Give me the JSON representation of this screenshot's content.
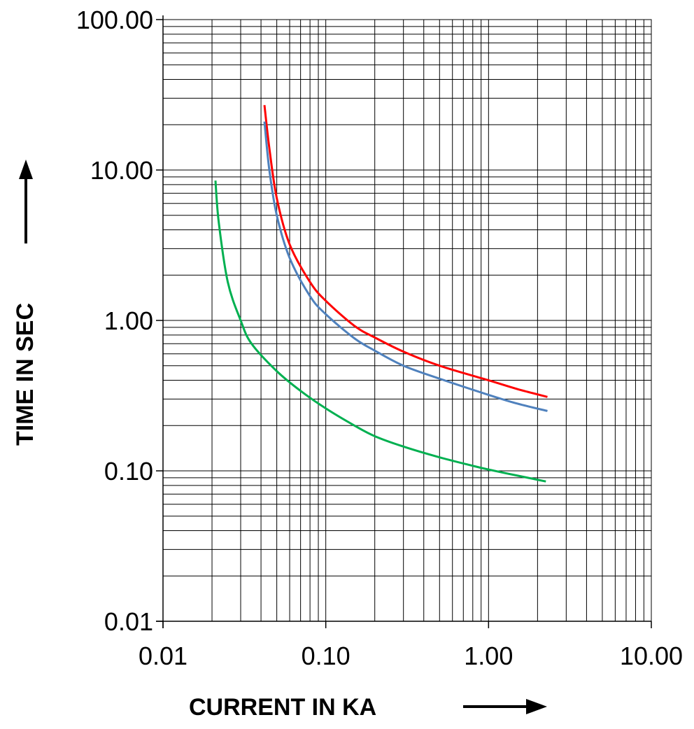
{
  "chart_data": {
    "type": "line",
    "title": "",
    "xlabel": "CURRENT IN  KA",
    "ylabel": "TIME IN SEC",
    "x_scale": "log",
    "y_scale": "log",
    "xlim": [
      0.01,
      10
    ],
    "ylim": [
      0.01,
      100
    ],
    "x_tick_labels": [
      "0.01",
      "0.10",
      "1.00",
      "10.00"
    ],
    "y_tick_labels": [
      "100.00",
      "10.00",
      "1.00",
      "0.10",
      "0.01"
    ],
    "grid": true,
    "legend": "none",
    "series": [
      {
        "color": "#ff0000",
        "x": [
          0.042,
          0.045,
          0.05,
          0.06,
          0.08,
          0.1,
          0.15,
          0.2,
          0.3,
          0.5,
          1.0,
          1.5,
          2.3
        ],
        "y": [
          27.0,
          14.0,
          6.5,
          3.2,
          1.8,
          1.35,
          0.92,
          0.77,
          0.62,
          0.5,
          0.4,
          0.35,
          0.31
        ]
      },
      {
        "color": "#4f81bd",
        "x": [
          0.042,
          0.045,
          0.05,
          0.06,
          0.08,
          0.1,
          0.15,
          0.2,
          0.3,
          0.5,
          1.0,
          1.5,
          2.3
        ],
        "y": [
          21.0,
          10.0,
          5.0,
          2.6,
          1.45,
          1.1,
          0.76,
          0.63,
          0.5,
          0.41,
          0.32,
          0.28,
          0.25
        ]
      },
      {
        "color": "#00b050",
        "x": [
          0.021,
          0.022,
          0.025,
          0.03,
          0.035,
          0.05,
          0.07,
          0.1,
          0.15,
          0.2,
          0.3,
          0.5,
          0.8,
          1.0,
          1.5,
          2.25
        ],
        "y": [
          8.5,
          4.5,
          1.8,
          1.0,
          0.7,
          0.46,
          0.34,
          0.26,
          0.2,
          0.17,
          0.145,
          0.123,
          0.108,
          0.102,
          0.093,
          0.085
        ]
      }
    ]
  },
  "annotations": {
    "x_arrow": "→",
    "y_arrow": "↑"
  }
}
